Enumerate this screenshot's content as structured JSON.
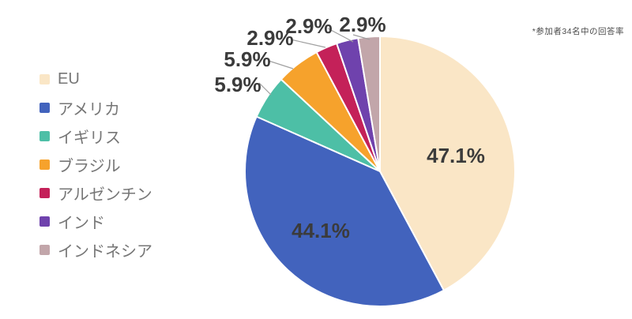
{
  "chart_data": {
    "type": "pie",
    "title": "",
    "note": "*参加者34名中の回答率",
    "unit": "%",
    "legend_position": "left",
    "start_angle_deg": 0,
    "direction": "clockwise",
    "normalized_to_100": true,
    "labels": [
      "EU",
      "アメリカ",
      "イギリス",
      "ブラジル",
      "アルゼンチン",
      "インド",
      "インドネシア"
    ],
    "values": [
      47.1,
      44.1,
      5.9,
      5.9,
      2.9,
      2.9,
      2.9
    ],
    "colors": [
      "#FAE6C6",
      "#4263BD",
      "#4DBFA6",
      "#F6A22C",
      "#C42159",
      "#6F42AD",
      "#C2A6AA"
    ],
    "label_text_color": "#3b3b3b",
    "legend_text_color": "#767676",
    "slice_border_color": "#ffffff"
  }
}
